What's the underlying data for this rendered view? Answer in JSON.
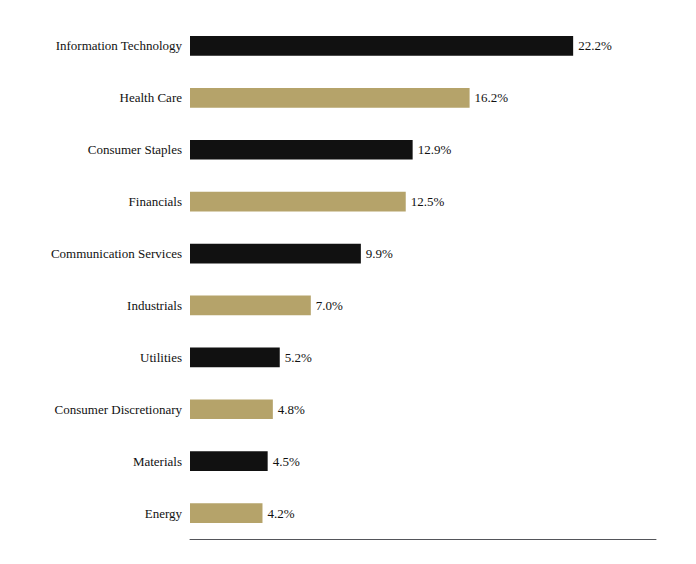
{
  "chart_data": {
    "type": "bar",
    "orientation": "horizontal",
    "categories": [
      "Energy",
      "Materials",
      "Consumer Discretionary",
      "Utilities",
      "Industrials",
      "Communication Services",
      "Financials",
      "Consumer Staples",
      "Health Care",
      "Information Technology"
    ],
    "values": [
      4.2,
      4.5,
      4.8,
      5.2,
      7.0,
      9.9,
      12.5,
      12.9,
      16.2,
      22.2
    ],
    "value_labels": [
      "4.2%",
      "4.5%",
      "4.8%",
      "5.2%",
      "7.0%",
      "9.9%",
      "12.5%",
      "12.9%",
      "16.2%",
      "22.2%"
    ],
    "colors": [
      "#b5a36a",
      "#111111",
      "#b5a36a",
      "#111111",
      "#b5a36a",
      "#111111",
      "#b5a36a",
      "#111111",
      "#b5a36a",
      "#111111"
    ],
    "xlim": [
      0,
      27
    ],
    "data_labels": true,
    "tick_labels": "y",
    "grid": false
  }
}
